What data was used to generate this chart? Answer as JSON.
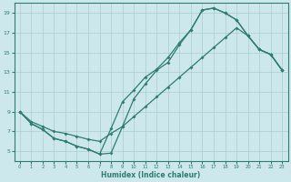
{
  "xlabel": "Humidex (Indice chaleur)",
  "bg_color": "#cce8ec",
  "grid_color": "#aacccc",
  "line_color": "#2e7d6e",
  "xlim": [
    -0.5,
    23.5
  ],
  "ylim": [
    4,
    20
  ],
  "xticks": [
    0,
    1,
    2,
    3,
    4,
    5,
    6,
    7,
    8,
    9,
    10,
    11,
    12,
    13,
    14,
    15,
    16,
    17,
    18,
    19,
    20,
    21,
    22,
    23
  ],
  "yticks": [
    5,
    7,
    9,
    11,
    13,
    15,
    17,
    19
  ],
  "curve1_x": [
    0,
    1,
    2,
    3,
    4,
    5,
    6,
    7,
    8,
    9,
    10,
    11,
    12,
    13,
    14,
    15,
    16,
    17,
    18,
    19,
    20,
    21,
    22,
    23
  ],
  "curve1_y": [
    9,
    7.8,
    7.2,
    6.3,
    6.0,
    5.5,
    5.2,
    4.7,
    4.8,
    7.5,
    10.3,
    11.8,
    13.2,
    14.0,
    15.8,
    17.3,
    19.3,
    19.5,
    19.0,
    18.3,
    16.7,
    15.3,
    14.8,
    13.2
  ],
  "curve2_x": [
    0,
    1,
    2,
    3,
    4,
    5,
    6,
    7,
    8,
    9,
    10,
    11,
    12,
    13,
    14,
    15,
    16,
    17,
    18,
    19,
    20,
    21,
    22,
    23
  ],
  "curve2_y": [
    9,
    7.8,
    7.2,
    6.3,
    6.0,
    5.5,
    5.2,
    4.7,
    7.3,
    10.0,
    11.2,
    12.5,
    13.3,
    14.5,
    16.0,
    17.3,
    19.3,
    19.5,
    19.0,
    18.3,
    16.7,
    15.3,
    14.8,
    13.2
  ],
  "curve3_x": [
    0,
    1,
    2,
    3,
    4,
    5,
    6,
    7,
    8,
    9,
    10,
    11,
    12,
    13,
    14,
    15,
    16,
    17,
    18,
    19,
    20,
    21,
    22,
    23
  ],
  "curve3_y": [
    9,
    8.0,
    7.5,
    7.0,
    6.8,
    6.5,
    6.2,
    6.0,
    6.8,
    7.5,
    8.5,
    9.5,
    10.5,
    11.5,
    12.5,
    13.5,
    14.5,
    15.5,
    16.5,
    17.5,
    16.7,
    15.3,
    14.8,
    13.2
  ]
}
